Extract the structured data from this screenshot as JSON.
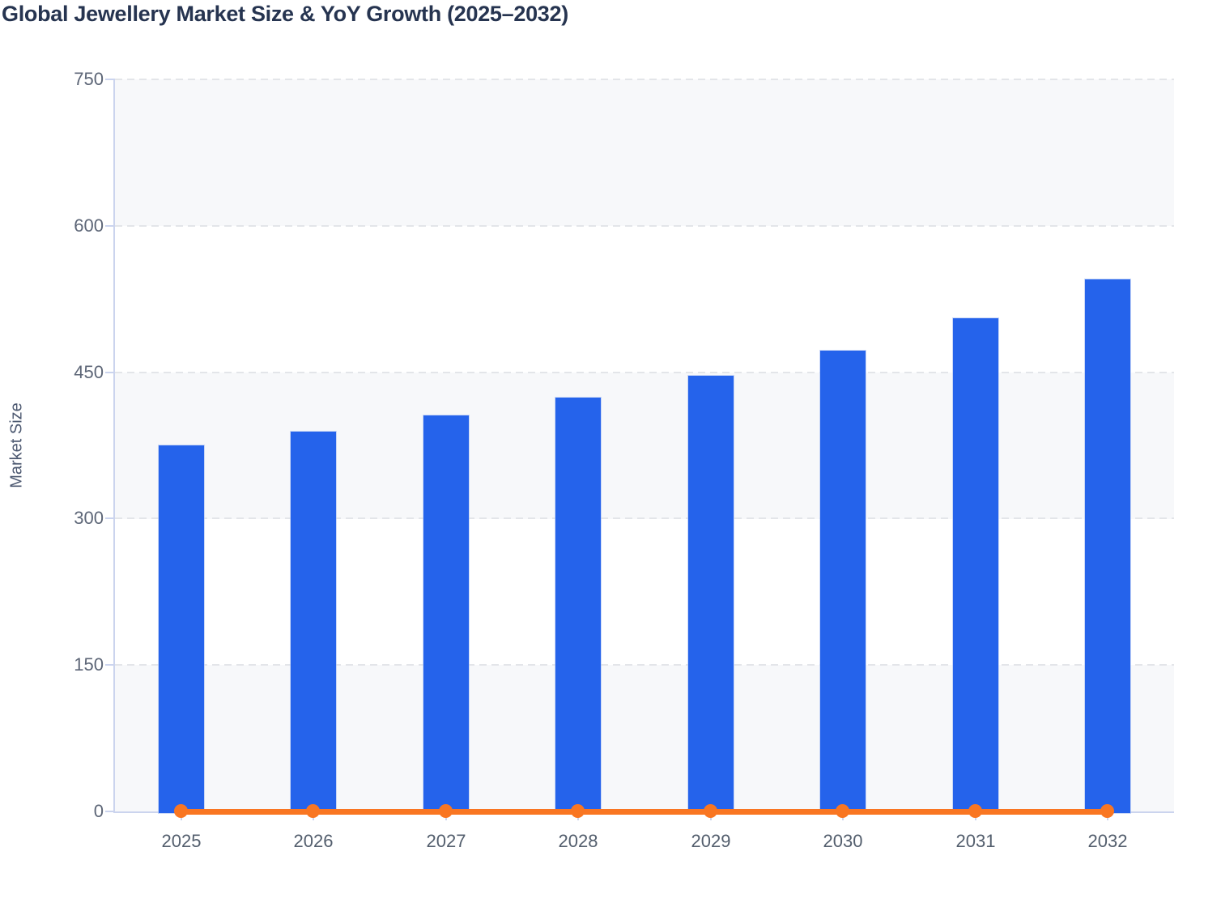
{
  "chart_data": {
    "type": "bar",
    "title": "Global Jewellery Market Size & YoY Growth (2025–2032)",
    "xlabel": "",
    "ylabel": "Market Size",
    "categories": [
      "2025",
      "2026",
      "2027",
      "2028",
      "2029",
      "2030",
      "2031",
      "2032"
    ],
    "series": [
      {
        "name": "Market Size",
        "type": "bar",
        "values": [
          375,
          389,
          406,
          424,
          446,
          472,
          505,
          545
        ]
      },
      {
        "name": "YoY Growth",
        "type": "line",
        "values": [
          0,
          0,
          0,
          0,
          0,
          0,
          0,
          0
        ],
        "note": "YoY growth percentages are not labeled; the orange line with round markers renders flat at approximately 0 on the shared Market Size axis"
      }
    ],
    "ylim": [
      0,
      750
    ],
    "yticks": [
      0,
      150,
      300,
      450,
      600,
      750
    ],
    "grid": "horizontal dashed gridlines with alternating shaded bands",
    "legend_position": "none"
  },
  "colors": {
    "bar": "#2563eb",
    "line": "#f97622",
    "axis": "#cbd4ee",
    "grid": "#e3e5e9",
    "band": "#f7f8fa",
    "title": "#263450",
    "tick_label": "#5d6677",
    "x_label": "#535e6d",
    "axis_title": "#4c5870"
  }
}
